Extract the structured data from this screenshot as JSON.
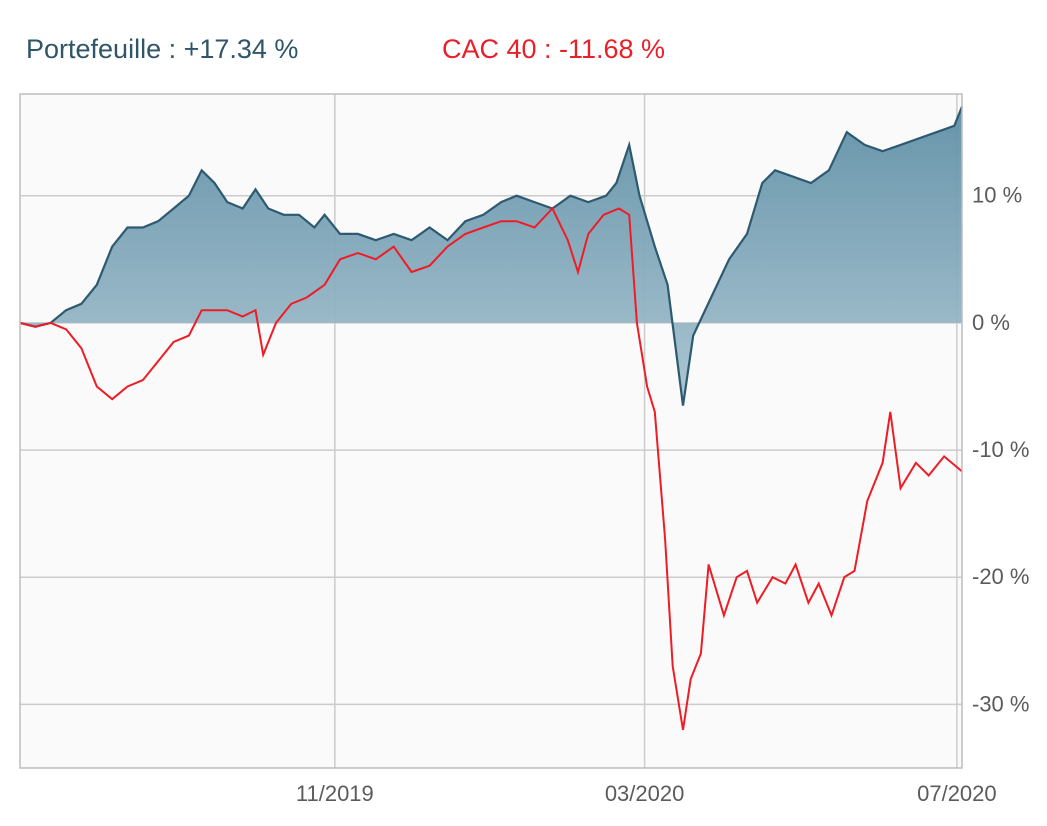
{
  "legend": {
    "portfolio": "Portefeuille : +17.34 %",
    "cac": "CAC 40 : -11.68 %"
  },
  "colors": {
    "portfolio_line": "#2d5a70",
    "portfolio_fill_top": "#5f8fa6",
    "portfolio_fill_bottom": "#a9c4d1",
    "cac_line": "#ee1c25",
    "plot_bg": "#fafafa",
    "grid": "#cccccc"
  },
  "chart_data": {
    "type": "area",
    "title": "",
    "xlabel": "",
    "ylabel": "",
    "ylim": [
      -35,
      18
    ],
    "xlim": [
      "2019-07-01",
      "2020-07-03"
    ],
    "grid": true,
    "y_ticks": [
      {
        "value": 10,
        "label": "10 %"
      },
      {
        "value": 0,
        "label": "0 %"
      },
      {
        "value": -10,
        "label": "-10 %"
      },
      {
        "value": -20,
        "label": "-20 %"
      },
      {
        "value": -30,
        "label": "-30 %"
      }
    ],
    "x_ticks": [
      {
        "value": "2019-11-01",
        "label": "11/2019"
      },
      {
        "value": "2020-03-01",
        "label": "03/2020"
      },
      {
        "value": "2020-07-01",
        "label": "07/2020"
      }
    ],
    "series": [
      {
        "name": "Portefeuille",
        "style": "area",
        "points": [
          [
            "2019-07-01",
            0
          ],
          [
            "2019-07-07",
            -0.3
          ],
          [
            "2019-07-13",
            0
          ],
          [
            "2019-07-19",
            1
          ],
          [
            "2019-07-25",
            1.5
          ],
          [
            "2019-07-31",
            3
          ],
          [
            "2019-08-06",
            6
          ],
          [
            "2019-08-12",
            7.5
          ],
          [
            "2019-08-18",
            7.5
          ],
          [
            "2019-08-24",
            8
          ],
          [
            "2019-08-30",
            9
          ],
          [
            "2019-09-05",
            10
          ],
          [
            "2019-09-10",
            12
          ],
          [
            "2019-09-15",
            11
          ],
          [
            "2019-09-20",
            9.5
          ],
          [
            "2019-09-26",
            9
          ],
          [
            "2019-10-01",
            10.5
          ],
          [
            "2019-10-06",
            9
          ],
          [
            "2019-10-12",
            8.5
          ],
          [
            "2019-10-18",
            8.5
          ],
          [
            "2019-10-24",
            7.5
          ],
          [
            "2019-10-28",
            8.5
          ],
          [
            "2019-11-03",
            7
          ],
          [
            "2019-11-10",
            7
          ],
          [
            "2019-11-17",
            6.5
          ],
          [
            "2019-11-24",
            7
          ],
          [
            "2019-12-01",
            6.5
          ],
          [
            "2019-12-08",
            7.5
          ],
          [
            "2019-12-15",
            6.5
          ],
          [
            "2019-12-22",
            8
          ],
          [
            "2019-12-29",
            8.5
          ],
          [
            "2020-01-05",
            9.5
          ],
          [
            "2020-01-11",
            10
          ],
          [
            "2020-01-18",
            9.5
          ],
          [
            "2020-01-25",
            9
          ],
          [
            "2020-02-01",
            10
          ],
          [
            "2020-02-08",
            9.5
          ],
          [
            "2020-02-15",
            10
          ],
          [
            "2020-02-19",
            11
          ],
          [
            "2020-02-24",
            14
          ],
          [
            "2020-02-28",
            10
          ],
          [
            "2020-03-05",
            6
          ],
          [
            "2020-03-10",
            3
          ],
          [
            "2020-03-16",
            -6.5
          ],
          [
            "2020-03-20",
            -1
          ],
          [
            "2020-03-27",
            2
          ],
          [
            "2020-04-03",
            5
          ],
          [
            "2020-04-10",
            7
          ],
          [
            "2020-04-16",
            11
          ],
          [
            "2020-04-21",
            12
          ],
          [
            "2020-04-28",
            11.5
          ],
          [
            "2020-05-05",
            11
          ],
          [
            "2020-05-12",
            12
          ],
          [
            "2020-05-19",
            15
          ],
          [
            "2020-05-26",
            14
          ],
          [
            "2020-06-02",
            13.5
          ],
          [
            "2020-06-09",
            14
          ],
          [
            "2020-06-16",
            14.5
          ],
          [
            "2020-06-23",
            15
          ],
          [
            "2020-06-30",
            15.5
          ],
          [
            "2020-07-03",
            17
          ]
        ]
      },
      {
        "name": "CAC 40",
        "style": "line",
        "points": [
          [
            "2019-07-01",
            0
          ],
          [
            "2019-07-07",
            -0.3
          ],
          [
            "2019-07-13",
            0
          ],
          [
            "2019-07-19",
            -0.5
          ],
          [
            "2019-07-25",
            -2
          ],
          [
            "2019-07-31",
            -5
          ],
          [
            "2019-08-06",
            -6
          ],
          [
            "2019-08-12",
            -5
          ],
          [
            "2019-08-18",
            -4.5
          ],
          [
            "2019-08-24",
            -3
          ],
          [
            "2019-08-30",
            -1.5
          ],
          [
            "2019-09-05",
            -1
          ],
          [
            "2019-09-10",
            1
          ],
          [
            "2019-09-15",
            1
          ],
          [
            "2019-09-20",
            1
          ],
          [
            "2019-09-26",
            0.5
          ],
          [
            "2019-10-01",
            1
          ],
          [
            "2019-10-04",
            -2.5
          ],
          [
            "2019-10-09",
            0
          ],
          [
            "2019-10-15",
            1.5
          ],
          [
            "2019-10-21",
            2
          ],
          [
            "2019-10-28",
            3
          ],
          [
            "2019-11-03",
            5
          ],
          [
            "2019-11-10",
            5.5
          ],
          [
            "2019-11-17",
            5
          ],
          [
            "2019-11-24",
            6
          ],
          [
            "2019-12-01",
            4
          ],
          [
            "2019-12-08",
            4.5
          ],
          [
            "2019-12-15",
            6
          ],
          [
            "2019-12-22",
            7
          ],
          [
            "2019-12-29",
            7.5
          ],
          [
            "2020-01-05",
            8
          ],
          [
            "2020-01-11",
            8
          ],
          [
            "2020-01-18",
            7.5
          ],
          [
            "2020-01-25",
            9
          ],
          [
            "2020-01-31",
            6.5
          ],
          [
            "2020-02-04",
            4
          ],
          [
            "2020-02-08",
            7
          ],
          [
            "2020-02-14",
            8.5
          ],
          [
            "2020-02-20",
            9
          ],
          [
            "2020-02-24",
            8.5
          ],
          [
            "2020-02-27",
            0
          ],
          [
            "2020-03-02",
            -5
          ],
          [
            "2020-03-05",
            -7
          ],
          [
            "2020-03-09",
            -17
          ],
          [
            "2020-03-12",
            -27
          ],
          [
            "2020-03-16",
            -32
          ],
          [
            "2020-03-19",
            -28
          ],
          [
            "2020-03-23",
            -26
          ],
          [
            "2020-03-26",
            -19
          ],
          [
            "2020-04-01",
            -23
          ],
          [
            "2020-04-06",
            -20
          ],
          [
            "2020-04-10",
            -19.5
          ],
          [
            "2020-04-14",
            -22
          ],
          [
            "2020-04-20",
            -20
          ],
          [
            "2020-04-25",
            -20.5
          ],
          [
            "2020-04-29",
            -19
          ],
          [
            "2020-05-04",
            -22
          ],
          [
            "2020-05-08",
            -20.5
          ],
          [
            "2020-05-13",
            -23
          ],
          [
            "2020-05-18",
            -20
          ],
          [
            "2020-05-22",
            -19.5
          ],
          [
            "2020-05-27",
            -14
          ],
          [
            "2020-06-02",
            -11
          ],
          [
            "2020-06-05",
            -7
          ],
          [
            "2020-06-09",
            -13
          ],
          [
            "2020-06-15",
            -11
          ],
          [
            "2020-06-20",
            -12
          ],
          [
            "2020-06-26",
            -10.5
          ],
          [
            "2020-07-03",
            -11.68
          ]
        ]
      }
    ]
  }
}
